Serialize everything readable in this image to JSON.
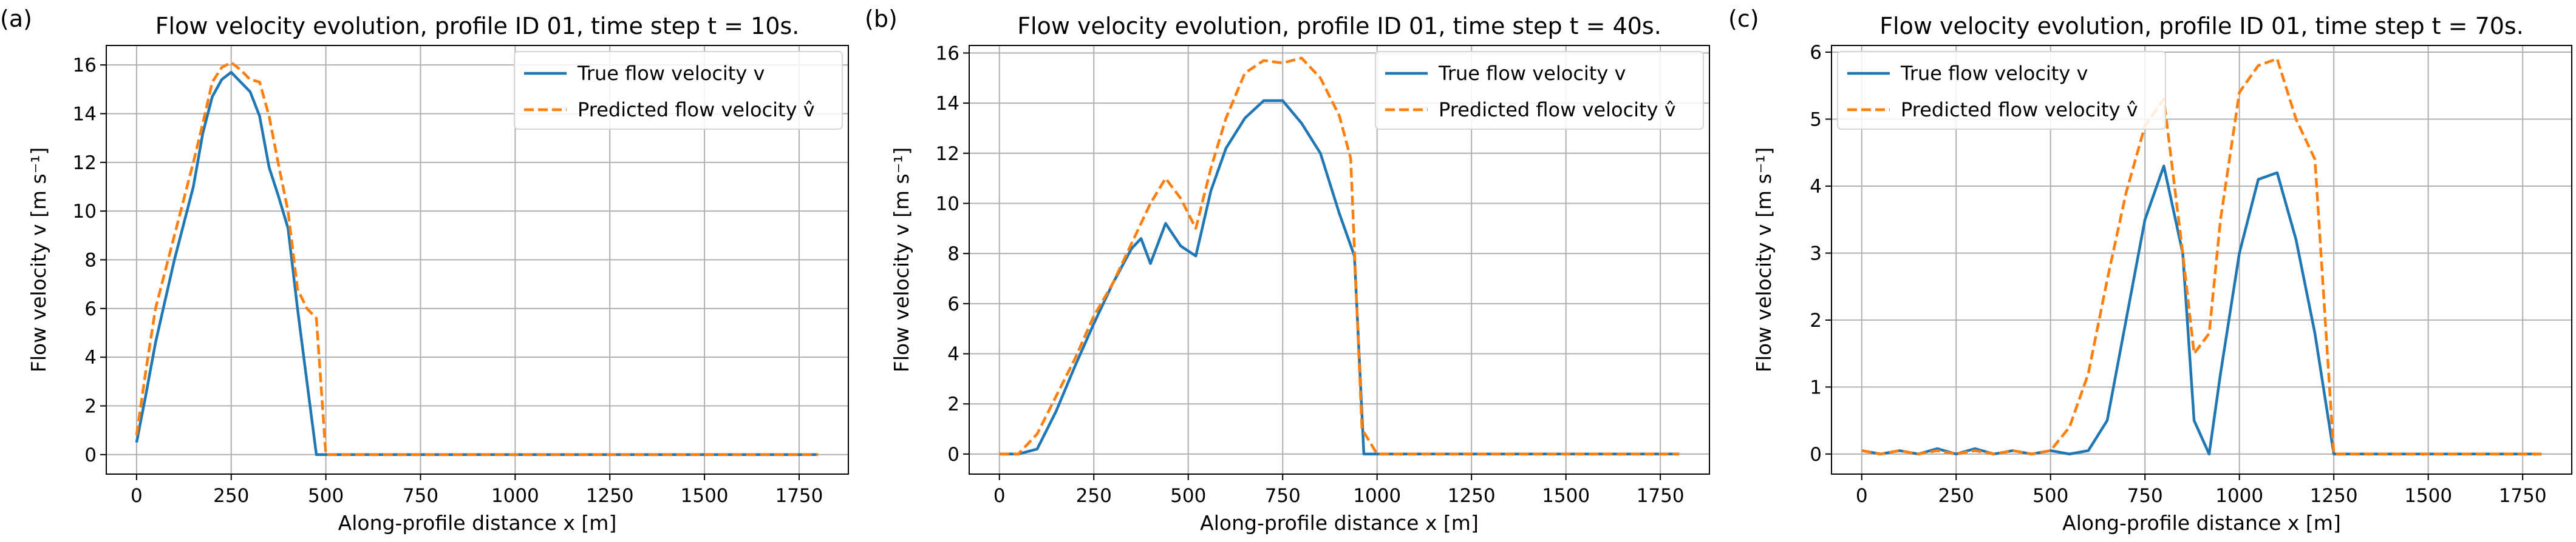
{
  "colors": {
    "true": "#1f77b4",
    "pred": "#ff7f0e",
    "grid": "#b0b0b0",
    "axis": "#000000"
  },
  "chart_data": [
    {
      "type": "line",
      "panel_label": "(a)",
      "title": "Flow velocity evolution, profile ID 01, time step t = 10s.",
      "xlabel": "Along-profile distance x [m]",
      "ylabel": "Flow velocity v [m s⁻¹]",
      "xlim": [
        -80,
        1880
      ],
      "ylim": [
        -0.8,
        16.8
      ],
      "xticks": [
        0,
        250,
        500,
        750,
        1000,
        1250,
        1500,
        1750
      ],
      "yticks": [
        0,
        2,
        4,
        6,
        8,
        10,
        12,
        14,
        16
      ],
      "legend_position": "top-right",
      "series": [
        {
          "name": "True flow velocity v",
          "style": "solid",
          "x": [
            0,
            25,
            50,
            75,
            100,
            125,
            150,
            175,
            200,
            225,
            250,
            275,
            300,
            325,
            350,
            375,
            400,
            425,
            450,
            475,
            500,
            525,
            1800
          ],
          "y": [
            0.5,
            2.5,
            4.6,
            6.3,
            8.0,
            9.5,
            11.0,
            13.2,
            14.7,
            15.4,
            15.7,
            15.3,
            14.9,
            13.9,
            11.8,
            10.6,
            9.3,
            6.0,
            3.0,
            0.0,
            0.0,
            0.0,
            0.0
          ]
        },
        {
          "name": "Predicted flow velocity v̂",
          "style": "dashed",
          "x": [
            0,
            25,
            50,
            75,
            100,
            125,
            150,
            175,
            200,
            225,
            250,
            275,
            300,
            325,
            350,
            375,
            400,
            425,
            450,
            475,
            500,
            525,
            1800
          ],
          "y": [
            0.8,
            3.5,
            6.0,
            7.5,
            9.0,
            10.5,
            12.0,
            13.6,
            15.3,
            15.9,
            16.1,
            15.8,
            15.4,
            15.3,
            13.9,
            11.9,
            10.0,
            6.8,
            6.0,
            5.6,
            0.0,
            0.0,
            0.0
          ]
        }
      ]
    },
    {
      "type": "line",
      "panel_label": "(b)",
      "title": "Flow velocity evolution, profile ID 01, time step t = 40s.",
      "xlabel": "Along-profile distance x [m]",
      "ylabel": "Flow velocity v [m s⁻¹]",
      "xlim": [
        -80,
        1880
      ],
      "ylim": [
        -0.8,
        16.3
      ],
      "xticks": [
        0,
        250,
        500,
        750,
        1000,
        1250,
        1500,
        1750
      ],
      "yticks": [
        0,
        2,
        4,
        6,
        8,
        10,
        12,
        14,
        16
      ],
      "legend_position": "top-right",
      "series": [
        {
          "name": "True flow velocity v",
          "style": "solid",
          "x": [
            0,
            50,
            100,
            150,
            200,
            250,
            300,
            350,
            375,
            400,
            440,
            480,
            520,
            560,
            600,
            650,
            700,
            750,
            800,
            850,
            900,
            940,
            965,
            1000,
            1800
          ],
          "y": [
            0.0,
            0.0,
            0.2,
            1.7,
            3.5,
            5.2,
            6.8,
            8.2,
            8.6,
            7.6,
            9.2,
            8.3,
            7.9,
            10.5,
            12.2,
            13.4,
            14.1,
            14.1,
            13.2,
            12.0,
            9.6,
            7.9,
            0.0,
            0.0,
            0.0
          ]
        },
        {
          "name": "Predicted flow velocity v̂",
          "style": "dashed",
          "x": [
            0,
            50,
            100,
            150,
            200,
            250,
            300,
            350,
            400,
            440,
            480,
            520,
            560,
            600,
            650,
            700,
            750,
            800,
            850,
            900,
            930,
            960,
            1000,
            1800
          ],
          "y": [
            0.0,
            0.0,
            0.8,
            2.3,
            3.8,
            5.5,
            6.8,
            8.4,
            10.0,
            11.0,
            10.2,
            9.0,
            11.4,
            13.4,
            15.2,
            15.7,
            15.6,
            15.8,
            15.0,
            13.5,
            11.8,
            1.0,
            0.0,
            0.0
          ]
        }
      ]
    },
    {
      "type": "line",
      "panel_label": "(c)",
      "title": "Flow velocity evolution, profile ID 01, time step t = 70s.",
      "xlabel": "Along-profile distance x [m]",
      "ylabel": "Flow velocity v [m s⁻¹]",
      "xlim": [
        -80,
        1880
      ],
      "ylim": [
        -0.3,
        6.1
      ],
      "xticks": [
        0,
        250,
        500,
        750,
        1000,
        1250,
        1500,
        1750
      ],
      "yticks": [
        0,
        1,
        2,
        3,
        4,
        5,
        6
      ],
      "legend_position": "top-left",
      "series": [
        {
          "name": "True flow velocity v",
          "style": "solid",
          "x": [
            0,
            50,
            100,
            150,
            200,
            250,
            300,
            350,
            400,
            450,
            500,
            550,
            600,
            650,
            700,
            750,
            800,
            850,
            880,
            920,
            950,
            1000,
            1050,
            1100,
            1150,
            1200,
            1250,
            1800
          ],
          "y": [
            0.05,
            0.0,
            0.05,
            0.0,
            0.08,
            0.0,
            0.08,
            0.0,
            0.05,
            0.0,
            0.05,
            0.0,
            0.05,
            0.5,
            2.0,
            3.5,
            4.3,
            3.0,
            0.5,
            0.0,
            1.2,
            3.0,
            4.1,
            4.2,
            3.2,
            1.8,
            0.0,
            0.0
          ]
        },
        {
          "name": "Predicted flow velocity v̂",
          "style": "dashed",
          "x": [
            0,
            50,
            100,
            150,
            200,
            250,
            300,
            350,
            400,
            450,
            500,
            550,
            600,
            650,
            700,
            750,
            800,
            850,
            880,
            920,
            950,
            1000,
            1050,
            1100,
            1150,
            1200,
            1250,
            1800
          ],
          "y": [
            0.05,
            0.0,
            0.05,
            0.0,
            0.05,
            0.0,
            0.05,
            0.0,
            0.05,
            0.0,
            0.05,
            0.4,
            1.2,
            2.6,
            3.9,
            4.9,
            5.3,
            3.0,
            1.5,
            1.8,
            3.5,
            5.4,
            5.8,
            5.9,
            5.0,
            4.4,
            0.0,
            0.0
          ]
        }
      ]
    }
  ]
}
